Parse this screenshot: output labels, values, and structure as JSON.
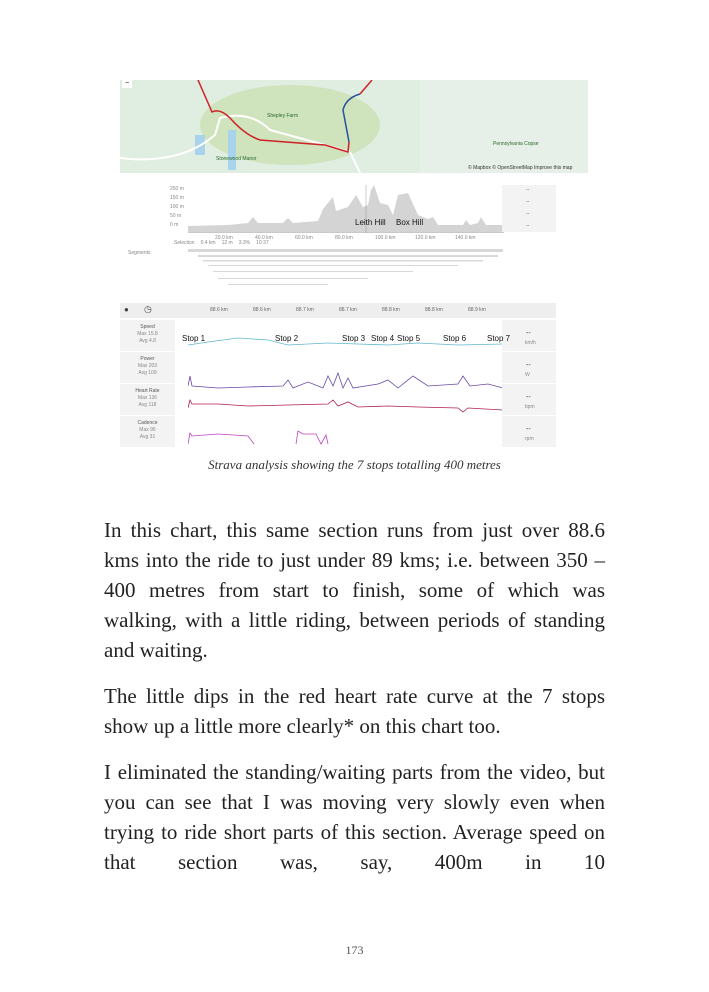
{
  "figure": {
    "map": {
      "labels": [
        "Shepley Farm",
        "Pennsylvania Copse",
        "Stonewood Manor"
      ],
      "attribution": "© Mapbox © OpenStreetMap Improve this map",
      "zoom_out": "−"
    },
    "elevation": {
      "y_ticks": [
        "250 m",
        "150 m",
        "100 m",
        "50 m",
        "0 m"
      ],
      "x_ticks": [
        "20.0 km",
        "40.0 km",
        "60.0 km",
        "80.0 km",
        "100.0 km",
        "120.0 km",
        "140.0 km"
      ],
      "annotations": [
        "Leith Hill",
        "Box Hill"
      ],
      "selection": [
        "Selection",
        "0.4 km",
        "12 m",
        "3.3%",
        "10:37"
      ],
      "segments_label": "Segments",
      "side_values": [
        "--",
        "--",
        "--",
        "--"
      ]
    },
    "detail": {
      "x_ticks": [
        "88.6 km",
        "88.6 km",
        "88.7 km",
        "88.7 km",
        "88.8 km",
        "88.8 km",
        "88.9 km"
      ],
      "rows": [
        {
          "name": "Speed",
          "max": "Max 15.8",
          "avg": "Avg 4.8",
          "value": "--",
          "unit": "km/h"
        },
        {
          "name": "Power",
          "max": "Max 203",
          "avg": "Avg 109",
          "value": "--",
          "unit": "W"
        },
        {
          "name": "Heart Rate",
          "max": "Max 136",
          "avg": "Avg 118",
          "value": "--",
          "unit": "bpm"
        },
        {
          "name": "Cadence",
          "max": "Max 96",
          "avg": "Avg 31",
          "value": "--",
          "unit": "rpm"
        }
      ],
      "stops": [
        "Stop 1",
        "Stop 2",
        "Stop 3",
        "Stop 4",
        "Stop 5",
        "Stop 6",
        "Stop 7"
      ]
    },
    "caption": "Strava analysis showing the 7 stops totalling 400 metres"
  },
  "paragraphs": [
    "In this chart, this same section runs from just over 88.6 kms into the ride to just under 89 kms; i.e. between 350 – 400 metres from start to finish, some of which was walking, with a little riding, between periods of standing and waiting.",
    "The little dips in the red heart rate curve at the 7 stops show up a little more clearly* on this chart too.",
    "I eliminated the standing/waiting parts from the video, but you can see that I was moving very slowly even when trying to ride short parts of this section. Average speed on that section was, say, 400m in 10"
  ],
  "page_number": "173"
}
